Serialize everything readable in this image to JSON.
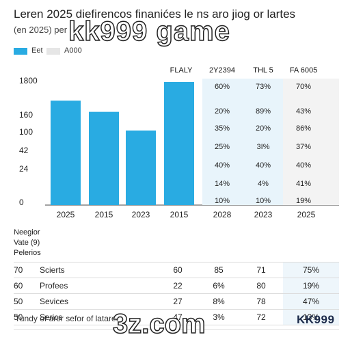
{
  "header": {
    "title": "Leren 2025 diefirencos finanićes le ns aro jiog or lartes",
    "subtitle": "(en 2025) per",
    "watermark_top": "kk999 game",
    "watermark_bottom": "3z.com"
  },
  "legend": [
    {
      "label": "Eet",
      "color": "#29abe2"
    },
    {
      "label": "A000",
      "color": "#e6e6e6"
    }
  ],
  "chart_data": {
    "type": "bar",
    "categories": [
      "2025",
      "2015",
      "2023",
      "2015"
    ],
    "values": [
      140,
      125,
      100,
      165
    ],
    "y_tick_labels": [
      "1800",
      "160",
      "100",
      "42",
      "24",
      "0"
    ],
    "bar_color": "#29abe2",
    "grid": false
  },
  "metric_table": {
    "headers": [
      "FLALY",
      "2Y2394",
      "THL 5",
      "FA 6005"
    ],
    "rows": [
      [
        "",
        "60%",
        "73%",
        "70%"
      ],
      [
        "",
        "20%",
        "89%",
        "43%"
      ],
      [
        "",
        "35%",
        "20%",
        "86%"
      ],
      [
        "",
        "25%",
        "3I%",
        "37%"
      ],
      [
        "",
        "40%",
        "40%",
        "40%"
      ],
      [
        "",
        "14%",
        "4%",
        "41%"
      ],
      [
        "",
        "10%",
        "10%",
        "19%"
      ]
    ],
    "footer_years": [
      "2028",
      "2023",
      "2025"
    ],
    "shade_color": "#e8f4fb"
  },
  "lower": {
    "labels": [
      "Neegior",
      "Vate (9)",
      "Pelerios"
    ],
    "rows": [
      {
        "idx": "70",
        "name": "Scierts",
        "a": "60",
        "b": "85",
        "c": "71",
        "d": "75%"
      },
      {
        "idx": "60",
        "name": "Profees",
        "a": "22",
        "b": "6%",
        "c": "80",
        "d": "19%"
      },
      {
        "idx": "50",
        "name": "Sevices",
        "a": "27",
        "b": "8%",
        "c": "78",
        "d": "47%"
      },
      {
        "idx": "50",
        "name": "Serics",
        "a": "47",
        "b": "3%",
        "c": "72",
        "d": "13%"
      }
    ]
  },
  "footer": {
    "text": "Tundy of arer sefor of lataret",
    "brand": "KK999"
  }
}
